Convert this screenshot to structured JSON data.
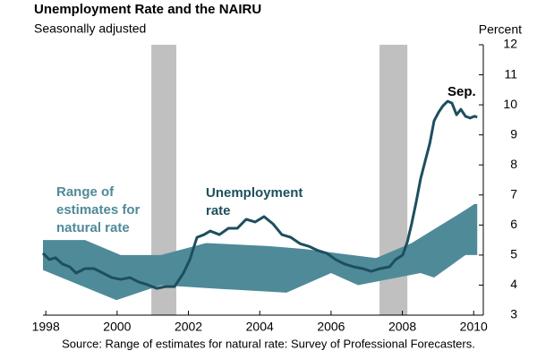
{
  "chart_data": {
    "type": "line",
    "title": "Unemployment Rate and the NAIRU",
    "subtitle": "Seasonally adjusted",
    "y_axis_label": "Percent",
    "source": "Source:  Range of estimates for natural rate: Survey of Professional Forecasters.",
    "xlim": [
      1997.92,
      2010.27
    ],
    "xticks": [
      1998,
      2000,
      2002,
      2004,
      2006,
      2008,
      2010
    ],
    "ylim": [
      3,
      12
    ],
    "yticks": [
      3,
      4,
      5,
      6,
      7,
      8,
      9,
      10,
      11,
      12
    ],
    "recessions": [
      [
        2000.96,
        2001.66
      ],
      [
        2007.36,
        2008.14
      ]
    ],
    "recession_color": "#c0c0c0",
    "band": {
      "label_lines": [
        "Range of",
        "estimates for",
        "natural rate"
      ],
      "color": "#4f8a99",
      "x_upper": [
        1997.92,
        1999.1,
        2000.1,
        2001.23,
        2002.49,
        2004.25,
        2005.25,
        2007.26,
        2008.26,
        2009.77,
        2010.02,
        2010.1
      ],
      "upper": [
        5.5,
        5.5,
        5.0,
        5.0,
        5.4,
        5.3,
        5.2,
        4.9,
        5.4,
        6.5,
        6.7,
        6.7
      ],
      "x_lower": [
        1997.92,
        1999.98,
        2001.23,
        2002.49,
        2004.75,
        2006.0,
        2006.76,
        2008.51,
        2008.89,
        2009.77,
        2010.1
      ],
      "lower": [
        4.5,
        3.5,
        4.0,
        3.9,
        3.75,
        4.4,
        4.0,
        4.4,
        4.25,
        5.0,
        5.0
      ]
    },
    "series": [
      {
        "name": "Unemployment rate",
        "label_lines": [
          "Unemployment",
          "rate"
        ],
        "color": "#1d4f5e",
        "end_label": "Sep.",
        "x": [
          1997.92,
          1998.1,
          1998.27,
          1998.47,
          1998.67,
          1998.85,
          1999.1,
          1999.35,
          1999.6,
          1999.85,
          2000.1,
          2000.36,
          2000.61,
          2000.86,
          2001.11,
          2001.36,
          2001.61,
          2001.86,
          2002.04,
          2002.24,
          2002.44,
          2002.61,
          2002.87,
          2003.12,
          2003.37,
          2003.62,
          2003.87,
          2004.12,
          2004.37,
          2004.62,
          2004.87,
          2005.13,
          2005.38,
          2005.63,
          2005.88,
          2006.13,
          2006.38,
          2006.63,
          2006.88,
          2007.13,
          2007.38,
          2007.64,
          2007.81,
          2008.01,
          2008.14,
          2008.26,
          2008.39,
          2008.51,
          2008.64,
          2008.77,
          2008.89,
          2009.02,
          2009.14,
          2009.27,
          2009.39,
          2009.52,
          2009.64,
          2009.77,
          2009.9,
          2010.02,
          2010.1
        ],
        "values": [
          5.06,
          4.85,
          4.91,
          4.7,
          4.61,
          4.4,
          4.55,
          4.55,
          4.4,
          4.25,
          4.19,
          4.25,
          4.1,
          4.01,
          3.89,
          3.95,
          3.95,
          4.4,
          4.85,
          5.59,
          5.68,
          5.8,
          5.68,
          5.89,
          5.89,
          6.19,
          6.1,
          6.28,
          6.04,
          5.68,
          5.59,
          5.38,
          5.29,
          5.15,
          5.06,
          4.85,
          4.7,
          4.61,
          4.55,
          4.46,
          4.55,
          4.61,
          4.85,
          5.0,
          5.44,
          6.04,
          6.78,
          7.53,
          8.13,
          8.72,
          9.47,
          9.76,
          9.97,
          10.12,
          10.06,
          9.67,
          9.85,
          9.62,
          9.56,
          9.62,
          9.59
        ]
      }
    ]
  }
}
